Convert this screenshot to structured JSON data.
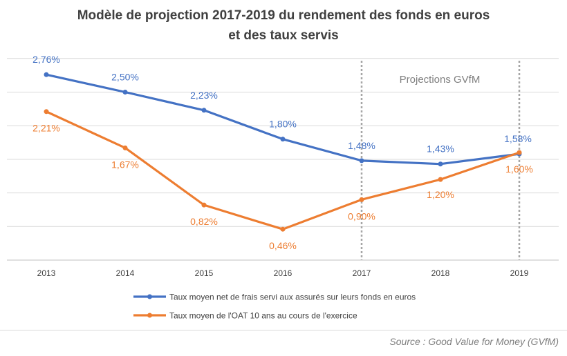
{
  "title_line1": "Modèle de projection 2017-2019 du rendement des fonds  en euros",
  "title_line2": "et des taux servis",
  "source": "Source : Good Value for Money (GVfM)",
  "projection_label": "Projections GVfM",
  "chart_data": {
    "type": "line",
    "x": [
      "2013",
      "2014",
      "2015",
      "2016",
      "2017",
      "2018",
      "2019"
    ],
    "title": "Modèle de projection 2017-2019 du rendement des fonds  en euros et des taux servis",
    "xlabel": "",
    "ylabel": "",
    "grid": true,
    "legend_position": "bottom",
    "series": [
      {
        "name": "Taux moyen net de frais servi aux assurés sur leurs fonds en euros",
        "color": "#4472c4",
        "values": [
          2.76,
          2.5,
          2.23,
          1.8,
          1.48,
          1.43,
          1.58
        ],
        "labels": [
          "2,76%",
          "2,50%",
          "2,23%",
          "1,80%",
          "1,48%",
          "1,43%",
          "1,58%"
        ]
      },
      {
        "name": "Taux moyen de l'OAT 10 ans au cours de l'exercice",
        "color": "#ed7d31",
        "values": [
          2.21,
          1.67,
          0.82,
          0.46,
          0.9,
          1.2,
          1.6
        ],
        "labels": [
          "2,21%",
          "1,67%",
          "0,82%",
          "0,46%",
          "0,90%",
          "1,20%",
          "1,60%"
        ]
      }
    ],
    "projection_years": [
      "2017",
      "2019"
    ]
  }
}
